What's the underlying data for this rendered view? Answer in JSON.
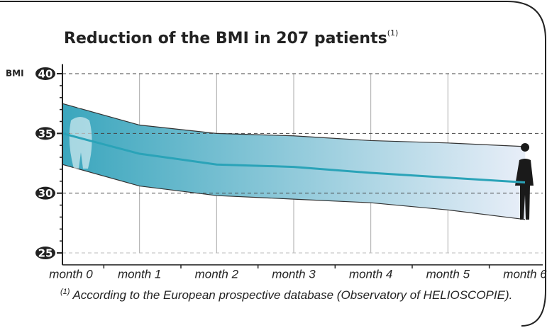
{
  "chart_data": {
    "type": "line",
    "title": "Reduction of the BMI in 207 patients",
    "title_note": "(1)",
    "ylabel": "BMI",
    "categories": [
      "month 0",
      "month 1",
      "month 2",
      "month 3",
      "month 4",
      "month 5",
      "month 6"
    ],
    "series": [
      {
        "color": "#2aa3b8",
        "values": [
          35.0,
          33.3,
          32.4,
          32.2,
          31.7,
          31.3,
          30.9
        ]
      }
    ],
    "range": {
      "upper": [
        37.5,
        35.7,
        35.0,
        34.8,
        34.4,
        34.2,
        33.9
      ],
      "lower": [
        32.4,
        30.6,
        29.8,
        29.5,
        29.2,
        28.6,
        27.8
      ],
      "color_start": "#3aa6bd",
      "color_end": "#e8eef8",
      "edge_color": "#333333"
    },
    "ylim": [
      24,
      40.8
    ],
    "yticks": [
      25,
      30,
      35,
      40
    ],
    "minor_yticks": [
      26,
      27,
      28,
      29,
      31,
      32,
      33,
      34,
      36,
      37,
      38,
      39
    ],
    "grid": true,
    "footnote": {
      "marker": "(1)",
      "text": "According to the European prospective database (Observatory of HELIOSCOPIE)."
    }
  }
}
